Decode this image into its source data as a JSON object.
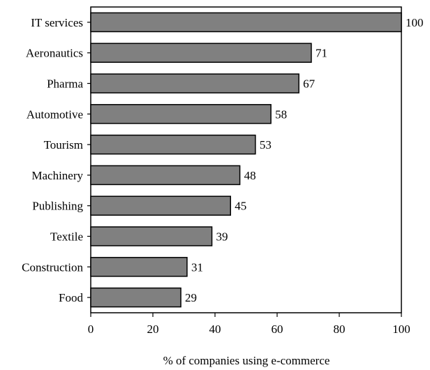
{
  "chart_data": {
    "type": "bar",
    "orientation": "horizontal",
    "categories": [
      "IT services",
      "Aeronautics",
      "Pharma",
      "Automotive",
      "Tourism",
      "Machinery",
      "Publishing",
      "Textile",
      "Construction",
      "Food"
    ],
    "values": [
      100,
      71,
      67,
      58,
      53,
      48,
      45,
      39,
      31,
      29
    ],
    "xlabel": "% of companies using e-commerce",
    "ylabel": "",
    "title": "",
    "xlim": [
      0,
      100
    ],
    "xticks": [
      0,
      20,
      40,
      60,
      80,
      100
    ],
    "grid": false,
    "legend": "none",
    "bar_color": "#808080",
    "bar_edge_color": "#000000",
    "data_labels": true
  }
}
